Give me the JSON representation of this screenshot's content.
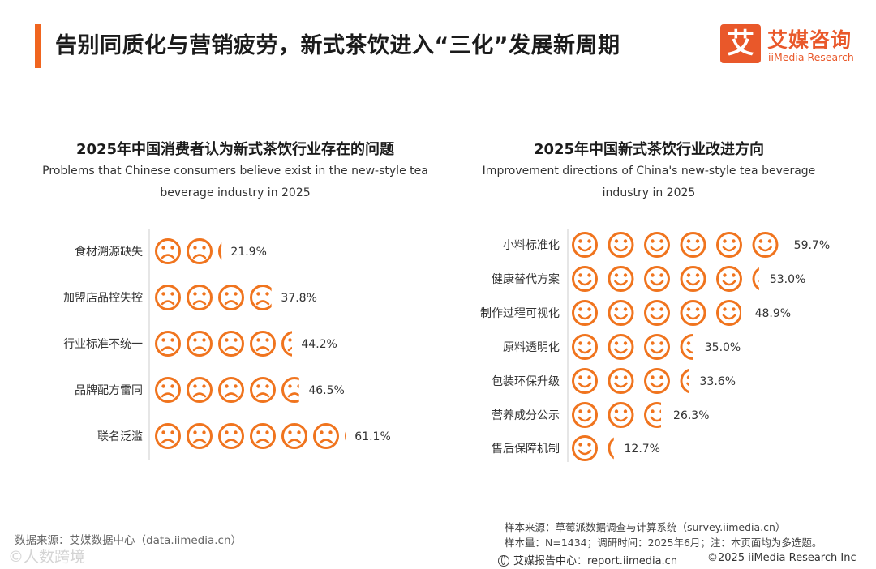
{
  "header": {
    "title": "告别同质化与营销疲劳，新式茶饮进入“三化”发展新周期",
    "accent_color": "#f0651f"
  },
  "logo": {
    "cn": "艾媒咨询",
    "en": "iiMedia Research",
    "mark": "艾",
    "color": "#e9582a"
  },
  "chart_data": [
    {
      "type": "bar",
      "style": "pictograph-sad-faces",
      "title": "2025年中国消费者认为新式茶饮行业存在的问题",
      "subtitle": "Problems that Chinese consumers believe exist in the new-style tea beverage industry in 2025",
      "categories": [
        "食材溯源缺失",
        "加盟店品控失控",
        "行业标准不统一",
        "品牌配方雷同",
        "联名泛滥"
      ],
      "values": [
        21.9,
        37.8,
        44.2,
        46.5,
        61.1
      ],
      "value_labels": [
        "21.9%",
        "37.8%",
        "44.2%",
        "46.5%",
        "61.1%"
      ],
      "unit": "%",
      "icon_unit": 10,
      "icon": "sad-face-icon",
      "color": "#f0741e"
    },
    {
      "type": "bar",
      "style": "pictograph-happy-faces",
      "title": "2025年中国新式茶饮行业改进方向",
      "subtitle": "Improvement directions of China's new-style tea beverage industry in 2025",
      "categories": [
        "小料标准化",
        "健康替代方案",
        "制作过程可视化",
        "原料透明化",
        "包装环保升级",
        "营养成分公示",
        "售后保障机制"
      ],
      "values": [
        59.7,
        53.0,
        48.9,
        35.0,
        33.6,
        26.3,
        12.7
      ],
      "value_labels": [
        "59.7%",
        "53.0%",
        "48.9%",
        "35.0%",
        "33.6%",
        "26.3%",
        "12.7%"
      ],
      "unit": "%",
      "icon_unit": 10,
      "icon": "happy-face-icon",
      "color": "#f0741e"
    }
  ],
  "footer": {
    "data_source": "数据来源：艾媒数据中心（data.iimedia.cn）",
    "sample_source": "样本来源：草莓派数据调查与计算系统（survey.iimedia.cn）",
    "sample_info": "样本量：N=1434；调研时间：2025年6月；注：本页面均为多选题。",
    "report_center": "艾媒报告中心：report.iimedia.cn",
    "copyright": "©2025  iiMedia Research  Inc",
    "watermark": "©人数跨境"
  }
}
